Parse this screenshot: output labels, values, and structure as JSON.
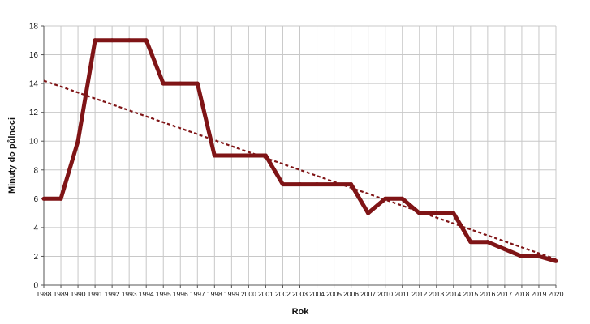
{
  "chart_data": {
    "type": "line",
    "title": "",
    "xlabel": "Rok",
    "ylabel": "Minuty do půlnoci",
    "ylim": [
      0,
      18
    ],
    "yticks": [
      0,
      2,
      4,
      6,
      8,
      10,
      12,
      14,
      16,
      18
    ],
    "grid": true,
    "colors": {
      "series": "#7f1416",
      "trend": "#7f1416",
      "grid": "#c8c8c8",
      "axis": "#555555"
    },
    "categories": [
      "1988",
      "1989",
      "1990",
      "1991",
      "1992",
      "1993",
      "1994",
      "1995",
      "1996",
      "1997",
      "1998",
      "1999",
      "2000",
      "2001",
      "2002",
      "2003",
      "2004",
      "2005",
      "2006",
      "2007",
      "2010",
      "2011",
      "2012",
      "2013",
      "2014",
      "2015",
      "2016",
      "2017",
      "2018",
      "2019",
      "2020"
    ],
    "series": [
      {
        "style": "solid",
        "values": [
          6,
          6,
          10,
          17,
          17,
          17,
          17,
          14,
          14,
          14,
          9,
          9,
          9,
          9,
          7,
          7,
          7,
          7,
          7,
          5,
          6,
          6,
          5,
          5,
          5,
          3,
          3,
          2.5,
          2,
          2,
          1.67
        ]
      },
      {
        "style": "dotted-trendline",
        "start": 14.2,
        "end": 1.8
      }
    ]
  }
}
